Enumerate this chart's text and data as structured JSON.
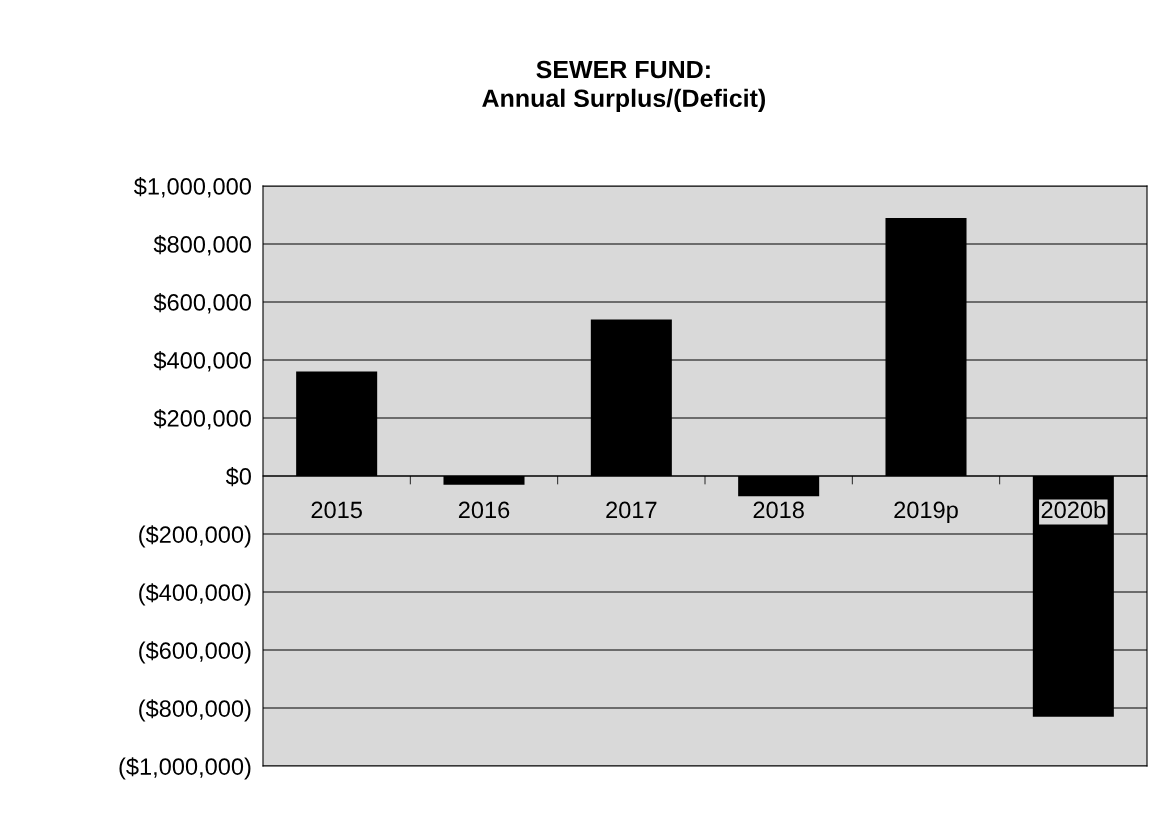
{
  "chart_data": {
    "type": "bar",
    "title": "SEWER FUND:\nAnnual Surplus/(Deficit)",
    "categories": [
      "2015",
      "2016",
      "2017",
      "2018",
      "2019p",
      "2020b"
    ],
    "values": [
      360000,
      -30000,
      540000,
      -70000,
      890000,
      -830000
    ],
    "color": "#000000",
    "ylim": [
      -1000000,
      1000000
    ],
    "yticks": [
      {
        "value": -1000000,
        "label": "($1,000,000)"
      },
      {
        "value": -800000,
        "label": "($800,000)"
      },
      {
        "value": -600000,
        "label": "($600,000)"
      },
      {
        "value": -400000,
        "label": "($400,000)"
      },
      {
        "value": -200000,
        "label": "($200,000)"
      },
      {
        "value": 0,
        "label": "$0"
      },
      {
        "value": 200000,
        "label": "$200,000"
      },
      {
        "value": 400000,
        "label": "$400,000"
      },
      {
        "value": 600000,
        "label": "$600,000"
      },
      {
        "value": 800000,
        "label": "$800,000"
      },
      {
        "value": 1000000,
        "label": "$1,000,000"
      }
    ],
    "grid": "y",
    "legend": false
  }
}
